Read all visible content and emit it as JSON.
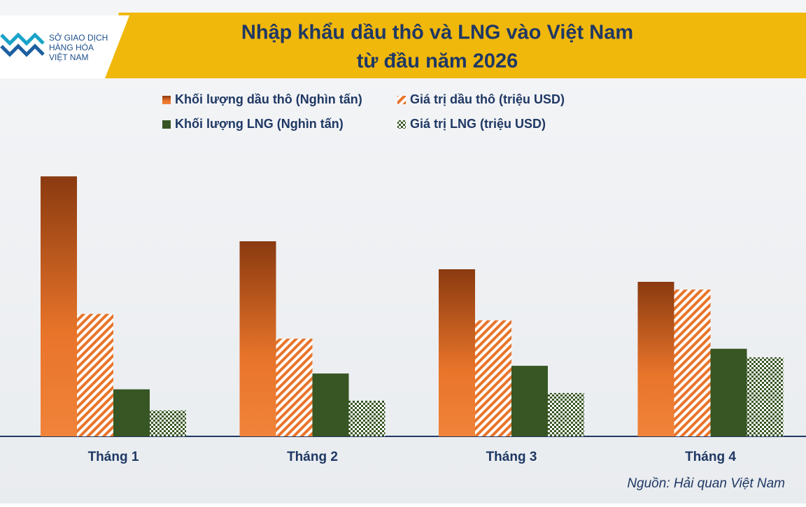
{
  "logo": [
    "SỞ GIAO DỊCH",
    "HÀNG HÓA",
    "VIỆT NAM"
  ],
  "chart_data": {
    "type": "bar",
    "title": [
      "Nhập khẩu dầu thô và LNG vào Việt Nam",
      "từ đầu năm 2026"
    ],
    "categories": [
      "Tháng 1",
      "Tháng 2",
      "Tháng 3",
      "Tháng 4"
    ],
    "series": [
      {
        "name": "Khối lượng dầu thô (Nghìn tấn)",
        "color": "#e8742a",
        "pattern": "gradient",
        "values": [
          6.41,
          4.81,
          4.12,
          3.81
        ]
      },
      {
        "name": "Giá trị dầu thô (triệu USD)",
        "color": "#e8742a",
        "pattern": "stripes",
        "values": [
          3.02,
          2.41,
          2.86,
          3.62
        ]
      },
      {
        "name": "Khối lượng LNG (Nghìn tấn)",
        "color": "#375623",
        "pattern": "solid",
        "values": [
          1.16,
          1.55,
          1.74,
          2.16
        ]
      },
      {
        "name": "Giá trị LNG (triệu USD)",
        "color": "#375623",
        "pattern": "checker",
        "values": [
          0.64,
          0.88,
          1.07,
          1.95
        ]
      }
    ],
    "ylim": [
      0,
      7
    ],
    "source": "Nguồn: Hải quan Việt Nam"
  }
}
